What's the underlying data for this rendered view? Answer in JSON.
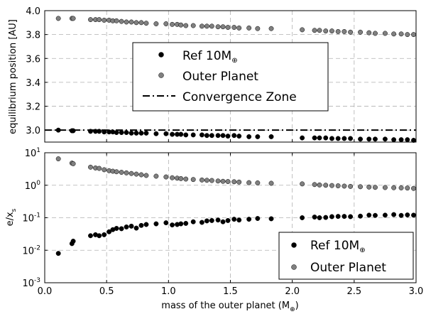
{
  "chart_data": [
    {
      "type": "scatter",
      "ylabel": "equilibrium position [AU]",
      "xlim": [
        0.0,
        3.0
      ],
      "ylim": [
        2.9,
        4.0
      ],
      "yticks": [
        "3.0",
        "3.2",
        "3.4",
        "3.6",
        "3.8",
        "4.0"
      ],
      "grid": true,
      "legend_position": "center",
      "legend": {
        "ref": "Ref 10M",
        "ref_sub": "⊕",
        "outer": "Outer Planet",
        "zone": "Convergence Zone"
      },
      "reference_line": {
        "name": "Convergence Zone",
        "y": 3.0
      },
      "series": [
        {
          "name": "Ref 10M⊕",
          "color": "#000000",
          "x": [
            0.11,
            0.22,
            0.23,
            0.37,
            0.41,
            0.44,
            0.48,
            0.52,
            0.55,
            0.58,
            0.62,
            0.66,
            0.7,
            0.74,
            0.78,
            0.82,
            0.9,
            0.98,
            1.03,
            1.07,
            1.1,
            1.14,
            1.2,
            1.27,
            1.31,
            1.35,
            1.4,
            1.44,
            1.48,
            1.53,
            1.57,
            1.65,
            1.72,
            1.83,
            2.08,
            2.18,
            2.22,
            2.27,
            2.32,
            2.37,
            2.42,
            2.47,
            2.55,
            2.62,
            2.67,
            2.75,
            2.82,
            2.88,
            2.93,
            2.98
          ],
          "y": [
            3.0,
            2.995,
            2.995,
            2.99,
            2.99,
            2.99,
            2.985,
            2.985,
            2.985,
            2.98,
            2.98,
            2.98,
            2.975,
            2.975,
            2.975,
            2.975,
            2.97,
            2.97,
            2.965,
            2.965,
            2.965,
            2.96,
            2.96,
            2.96,
            2.955,
            2.955,
            2.955,
            2.955,
            2.95,
            2.955,
            2.95,
            2.945,
            2.945,
            2.945,
            2.935,
            2.935,
            2.935,
            2.935,
            2.93,
            2.93,
            2.93,
            2.93,
            2.925,
            2.925,
            2.925,
            2.925,
            2.92,
            2.92,
            2.92,
            2.915
          ]
        },
        {
          "name": "Outer Planet",
          "color": "#808080",
          "x": [
            0.11,
            0.22,
            0.23,
            0.37,
            0.41,
            0.44,
            0.48,
            0.52,
            0.55,
            0.58,
            0.62,
            0.66,
            0.7,
            0.74,
            0.78,
            0.82,
            0.9,
            0.98,
            1.03,
            1.07,
            1.1,
            1.14,
            1.2,
            1.27,
            1.31,
            1.35,
            1.4,
            1.44,
            1.48,
            1.53,
            1.57,
            1.65,
            1.72,
            1.83,
            2.08,
            2.18,
            2.22,
            2.27,
            2.32,
            2.37,
            2.42,
            2.47,
            2.55,
            2.62,
            2.67,
            2.75,
            2.82,
            2.88,
            2.93,
            2.98
          ],
          "y": [
            3.935,
            3.935,
            3.935,
            3.925,
            3.925,
            3.925,
            3.92,
            3.92,
            3.915,
            3.915,
            3.91,
            3.905,
            3.905,
            3.9,
            3.9,
            3.895,
            3.89,
            3.89,
            3.885,
            3.885,
            3.88,
            3.875,
            3.875,
            3.87,
            3.87,
            3.87,
            3.865,
            3.865,
            3.86,
            3.86,
            3.855,
            3.855,
            3.85,
            3.85,
            3.84,
            3.835,
            3.835,
            3.83,
            3.83,
            3.825,
            3.825,
            3.82,
            3.82,
            3.815,
            3.81,
            3.81,
            3.805,
            3.805,
            3.8,
            3.8
          ]
        }
      ]
    },
    {
      "type": "scatter",
      "xlabel": "mass of the outer planet (M",
      "xlabel_sub": "⊕",
      "xlabel_end": ")",
      "ylabel": "e/x",
      "ylabel_sub": "s",
      "yscale": "log",
      "xlim": [
        0.0,
        3.0
      ],
      "ylim": [
        0.001,
        10
      ],
      "xticks": [
        "0.0",
        "0.5",
        "1.0",
        "1.5",
        "2.0",
        "2.5",
        "3.0"
      ],
      "yticks": [
        {
          "base": "10",
          "exp": "-3"
        },
        {
          "base": "10",
          "exp": "-2"
        },
        {
          "base": "10",
          "exp": "-1"
        },
        {
          "base": "10",
          "exp": "0"
        },
        {
          "base": "10",
          "exp": "1"
        }
      ],
      "grid": true,
      "legend_position": "bottom-right",
      "legend": {
        "ref": "Ref 10M",
        "ref_sub": "⊕",
        "outer": "Outer Planet"
      },
      "series": [
        {
          "name": "Ref 10M⊕",
          "color": "#000000",
          "x": [
            0.11,
            0.22,
            0.23,
            0.37,
            0.41,
            0.44,
            0.48,
            0.52,
            0.55,
            0.58,
            0.62,
            0.66,
            0.7,
            0.74,
            0.78,
            0.82,
            0.9,
            0.98,
            1.03,
            1.07,
            1.1,
            1.14,
            1.2,
            1.27,
            1.31,
            1.35,
            1.4,
            1.44,
            1.48,
            1.53,
            1.57,
            1.65,
            1.72,
            1.83,
            2.08,
            2.18,
            2.22,
            2.27,
            2.32,
            2.37,
            2.42,
            2.47,
            2.55,
            2.62,
            2.67,
            2.75,
            2.82,
            2.88,
            2.93,
            2.98
          ],
          "y": [
            0.008,
            0.016,
            0.019,
            0.028,
            0.03,
            0.028,
            0.03,
            0.037,
            0.043,
            0.047,
            0.046,
            0.052,
            0.055,
            0.048,
            0.058,
            0.062,
            0.065,
            0.07,
            0.06,
            0.062,
            0.065,
            0.067,
            0.075,
            0.072,
            0.08,
            0.082,
            0.085,
            0.075,
            0.082,
            0.09,
            0.085,
            0.09,
            0.095,
            0.093,
            0.1,
            0.105,
            0.1,
            0.102,
            0.108,
            0.11,
            0.11,
            0.108,
            0.112,
            0.12,
            0.118,
            0.12,
            0.125,
            0.118,
            0.122,
            0.12
          ]
        },
        {
          "name": "Outer Planet",
          "color": "#808080",
          "x": [
            0.11,
            0.22,
            0.23,
            0.37,
            0.41,
            0.44,
            0.48,
            0.52,
            0.55,
            0.58,
            0.62,
            0.66,
            0.7,
            0.74,
            0.78,
            0.82,
            0.9,
            0.98,
            1.03,
            1.07,
            1.1,
            1.14,
            1.2,
            1.27,
            1.31,
            1.35,
            1.4,
            1.44,
            1.48,
            1.53,
            1.57,
            1.65,
            1.72,
            1.83,
            2.08,
            2.18,
            2.22,
            2.27,
            2.32,
            2.37,
            2.42,
            2.47,
            2.55,
            2.62,
            2.67,
            2.75,
            2.82,
            2.88,
            2.93,
            2.98
          ],
          "y": [
            6.5,
            4.8,
            4.6,
            3.6,
            3.4,
            3.3,
            3.0,
            2.8,
            2.7,
            2.6,
            2.5,
            2.4,
            2.3,
            2.2,
            2.1,
            2.0,
            1.9,
            1.8,
            1.7,
            1.65,
            1.6,
            1.55,
            1.5,
            1.45,
            1.42,
            1.4,
            1.35,
            1.32,
            1.3,
            1.28,
            1.25,
            1.2,
            1.18,
            1.15,
            1.1,
            1.05,
            1.02,
            1.0,
            0.98,
            0.96,
            0.94,
            0.92,
            0.9,
            0.88,
            0.86,
            0.85,
            0.84,
            0.83,
            0.82,
            0.8
          ]
        }
      ]
    }
  ]
}
